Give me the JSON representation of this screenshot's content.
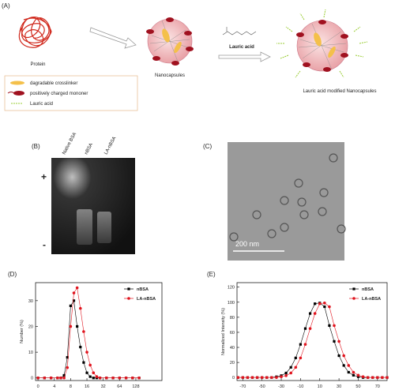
{
  "figure": {
    "panel_a": {
      "label": "(A)",
      "protein": "Protein",
      "nanocapsules": "Nanocapsules",
      "arrow_label": "Lauric acid",
      "modified": "Lauric acid modified Nanocapsules",
      "legend": [
        "dagradable crosslinker",
        "positively charged mononer",
        "Lauric acid"
      ]
    },
    "panel_b": {
      "label": "(B)",
      "lanes": [
        "Native BSA",
        "nBSA",
        "LA-nBSA"
      ],
      "plus": "+",
      "minus": "-"
    },
    "panel_c": {
      "label": "(C)",
      "scale_bar": "200 nm"
    }
  },
  "chart_data": [
    {
      "type": "line",
      "label": "(D)",
      "y_label": "Number (%)",
      "x": [
        0,
        0.4,
        0.8,
        1.2,
        1.4,
        1.6,
        1.8,
        2.0,
        2.2,
        2.4,
        2.6,
        2.8,
        3.0,
        3.2,
        3.4,
        3.6,
        3.8,
        4.2,
        4.6,
        5.0,
        5.4,
        5.8,
        6.2
      ],
      "series": [
        {
          "name": "nBSA",
          "color": "#000000",
          "marker": "square",
          "values": [
            0,
            0,
            0,
            0,
            0,
            1,
            8,
            28,
            30,
            20,
            12,
            6,
            2,
            0.5,
            0,
            0,
            0,
            0,
            0,
            0,
            0,
            0,
            0
          ]
        },
        {
          "name": "LA-nBSA",
          "color": "#e0141e",
          "marker": "circle",
          "values": [
            0,
            0,
            0,
            0,
            0,
            0,
            4,
            20,
            33,
            35,
            27,
            18,
            10,
            5,
            2,
            0.5,
            0,
            0,
            0,
            0,
            0,
            0,
            0
          ]
        }
      ],
      "xlim": [
        -0.15,
        7.6
      ],
      "xticks": [
        {
          "value": 0,
          "label": "0"
        },
        {
          "value": 1,
          "label": "4"
        },
        {
          "value": 2,
          "label": "8"
        },
        {
          "value": 3,
          "label": "16"
        },
        {
          "value": 4,
          "label": "32"
        },
        {
          "value": 5,
          "label": "64"
        },
        {
          "value": 6,
          "label": "128"
        }
      ],
      "ylim": [
        -1,
        37
      ],
      "yticks": [
        0,
        10,
        20,
        30
      ],
      "legend": "upper right"
    },
    {
      "type": "line",
      "label": "(E)",
      "y_label": "Normalized Intensity (%)",
      "x": [
        -75,
        -70,
        -65,
        -60,
        -55,
        -50,
        -45,
        -40,
        -35,
        -30,
        -25,
        -20,
        -15,
        -10,
        -5,
        0,
        5,
        10,
        15,
        20,
        25,
        30,
        35,
        40,
        45,
        50,
        55,
        60,
        65,
        70,
        75,
        80
      ],
      "series": [
        {
          "name": "nBSA",
          "color": "#000000",
          "marker": "square",
          "values": [
            0,
            0,
            0,
            0,
            0,
            0,
            0,
            0,
            1,
            2.5,
            6,
            13.5,
            26,
            44,
            65,
            85,
            98,
            99,
            94,
            69,
            48,
            29,
            16,
            7,
            3,
            1,
            0,
            0,
            0,
            0,
            0,
            0
          ]
        },
        {
          "name": "LA-nBSA",
          "color": "#e0141e",
          "marker": "circle",
          "values": [
            0,
            0,
            0,
            0,
            0,
            0,
            0,
            0,
            0,
            1,
            2.5,
            6,
            13.5,
            26,
            44,
            65,
            85,
            98,
            99,
            94,
            69,
            48,
            29,
            16,
            7,
            3,
            1,
            0,
            0,
            0,
            0,
            0
          ]
        }
      ],
      "xlim": [
        -76,
        80
      ],
      "xticks": [
        -70,
        -50,
        -30,
        -10,
        10,
        30,
        50,
        70
      ],
      "ylim": [
        -4,
        126
      ],
      "yticks": [
        0,
        20,
        40,
        60,
        80,
        100,
        120
      ],
      "legend": "upper right"
    }
  ]
}
